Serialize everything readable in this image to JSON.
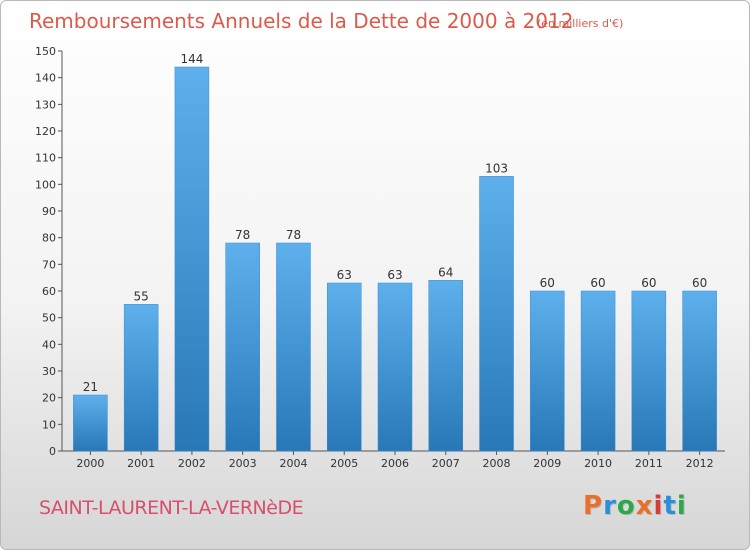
{
  "header": {
    "title": "Remboursements Annuels de la Dette de 2000 à 2012",
    "unit": "(en milliers d'€)"
  },
  "footer": {
    "commune": "SAINT-LAURENT-LA-VERNèDE",
    "logo": "Proxiti"
  },
  "colors": {
    "title": "#dd5a4a",
    "bar_top": "#5eb0ec",
    "bar_bottom": "#2878b8",
    "logo_letters": [
      "#e8702a",
      "#2a8fd8",
      "#2aa84a",
      "#e8702a",
      "#d83a3a",
      "#2a8fd8",
      "#2aa84a"
    ]
  },
  "chart_data": {
    "type": "bar",
    "title": "Remboursements Annuels de la Dette de 2000 à 2012",
    "subtitle": "(en milliers d'€)",
    "categories": [
      "2000",
      "2001",
      "2002",
      "2003",
      "2004",
      "2005",
      "2006",
      "2007",
      "2008",
      "2009",
      "2010",
      "2011",
      "2012"
    ],
    "values": [
      21,
      55,
      144,
      78,
      78,
      63,
      63,
      64,
      103,
      60,
      60,
      60,
      60
    ],
    "xlabel": "",
    "ylabel": "",
    "ylim": [
      0,
      150
    ],
    "yticks": [
      0,
      10,
      20,
      30,
      40,
      50,
      60,
      70,
      80,
      90,
      100,
      110,
      120,
      130,
      140,
      150
    ],
    "grid": false,
    "data_labels": true
  }
}
